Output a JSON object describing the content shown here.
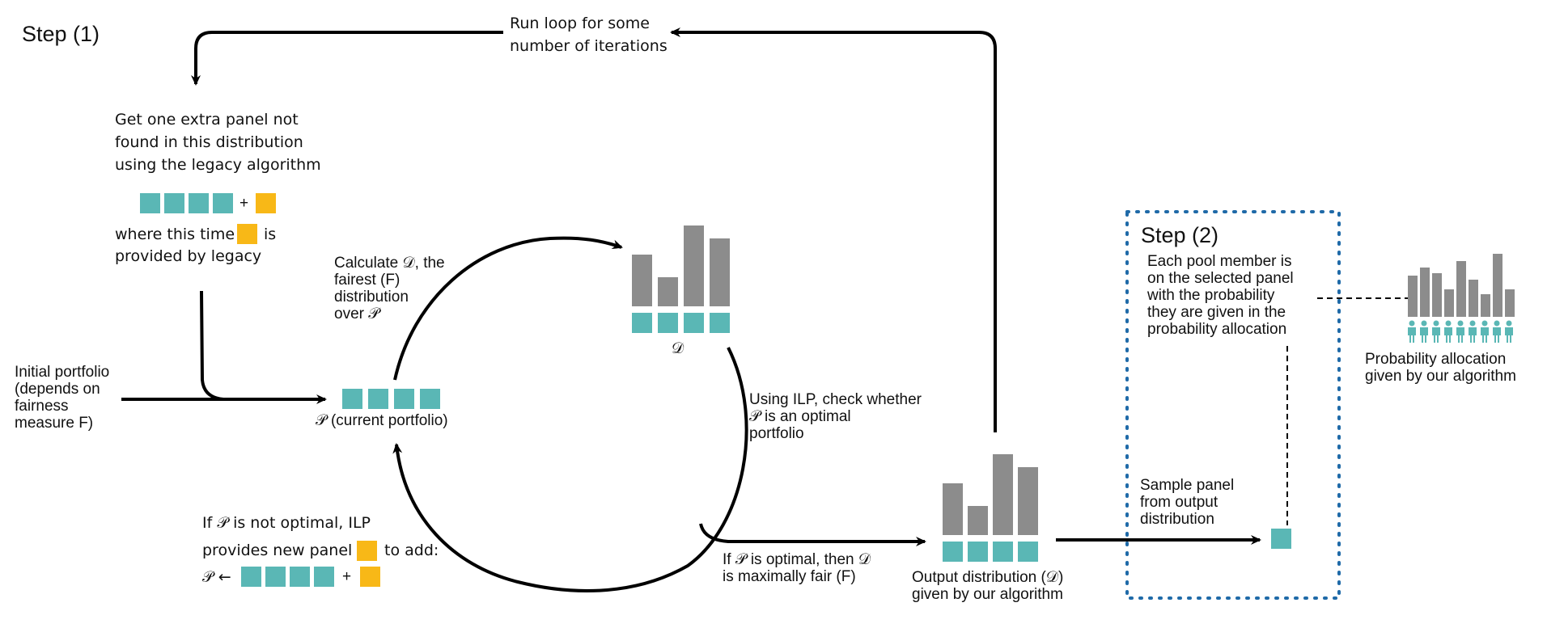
{
  "step1_title": "Step (1)",
  "step2_title": "Step (2)",
  "loop_label": "Run loop for some\nnumber of iterations",
  "extra_panel_text": "Get one extra panel not\nfound in this distribution\nusing the legacy algorithm",
  "where_text_pre": "where this time",
  "where_text_post": "is",
  "where_text_line2": "provided by legacy",
  "plus_sign": "+",
  "initial_portfolio": "Initial portfolio\n(depends on\nfairness\nmeasure F)",
  "current_portfolio": "𝒫 (current portfolio)",
  "calculate_text": "Calculate 𝒟, the\nfairest (F)\ndistribution\nover 𝒫",
  "dist_symbol": "𝒟",
  "ilp_check_text": "Using ILP, check whether\n𝒫 is an optimal\nportfolio",
  "not_optimal_line1": "If 𝒫 is not optimal, ILP",
  "not_optimal_line2_pre": "provides new panel",
  "not_optimal_line2_post": "to add:",
  "update_prefix": "𝒫 ←",
  "optimal_text": "If 𝒫 is optimal, then 𝒟\nis maximally fair (F)",
  "output_dist_text": "Output distribution (𝒟)\ngiven by our algorithm",
  "sample_text": "Sample panel\nfrom output\ndistribution",
  "pool_member_text": "Each pool member is\non the selected panel\nwith the probability\nthey are given in the\nprobability allocation",
  "prob_alloc_text": "Probability allocation\ngiven by our algorithm",
  "colors": {
    "teal": "#5ab7b5",
    "gold": "#f8b817",
    "gray_bar": "#8c8c8c",
    "dotted_box": "#1f6aa8"
  },
  "icons": [
    "person-icon"
  ]
}
